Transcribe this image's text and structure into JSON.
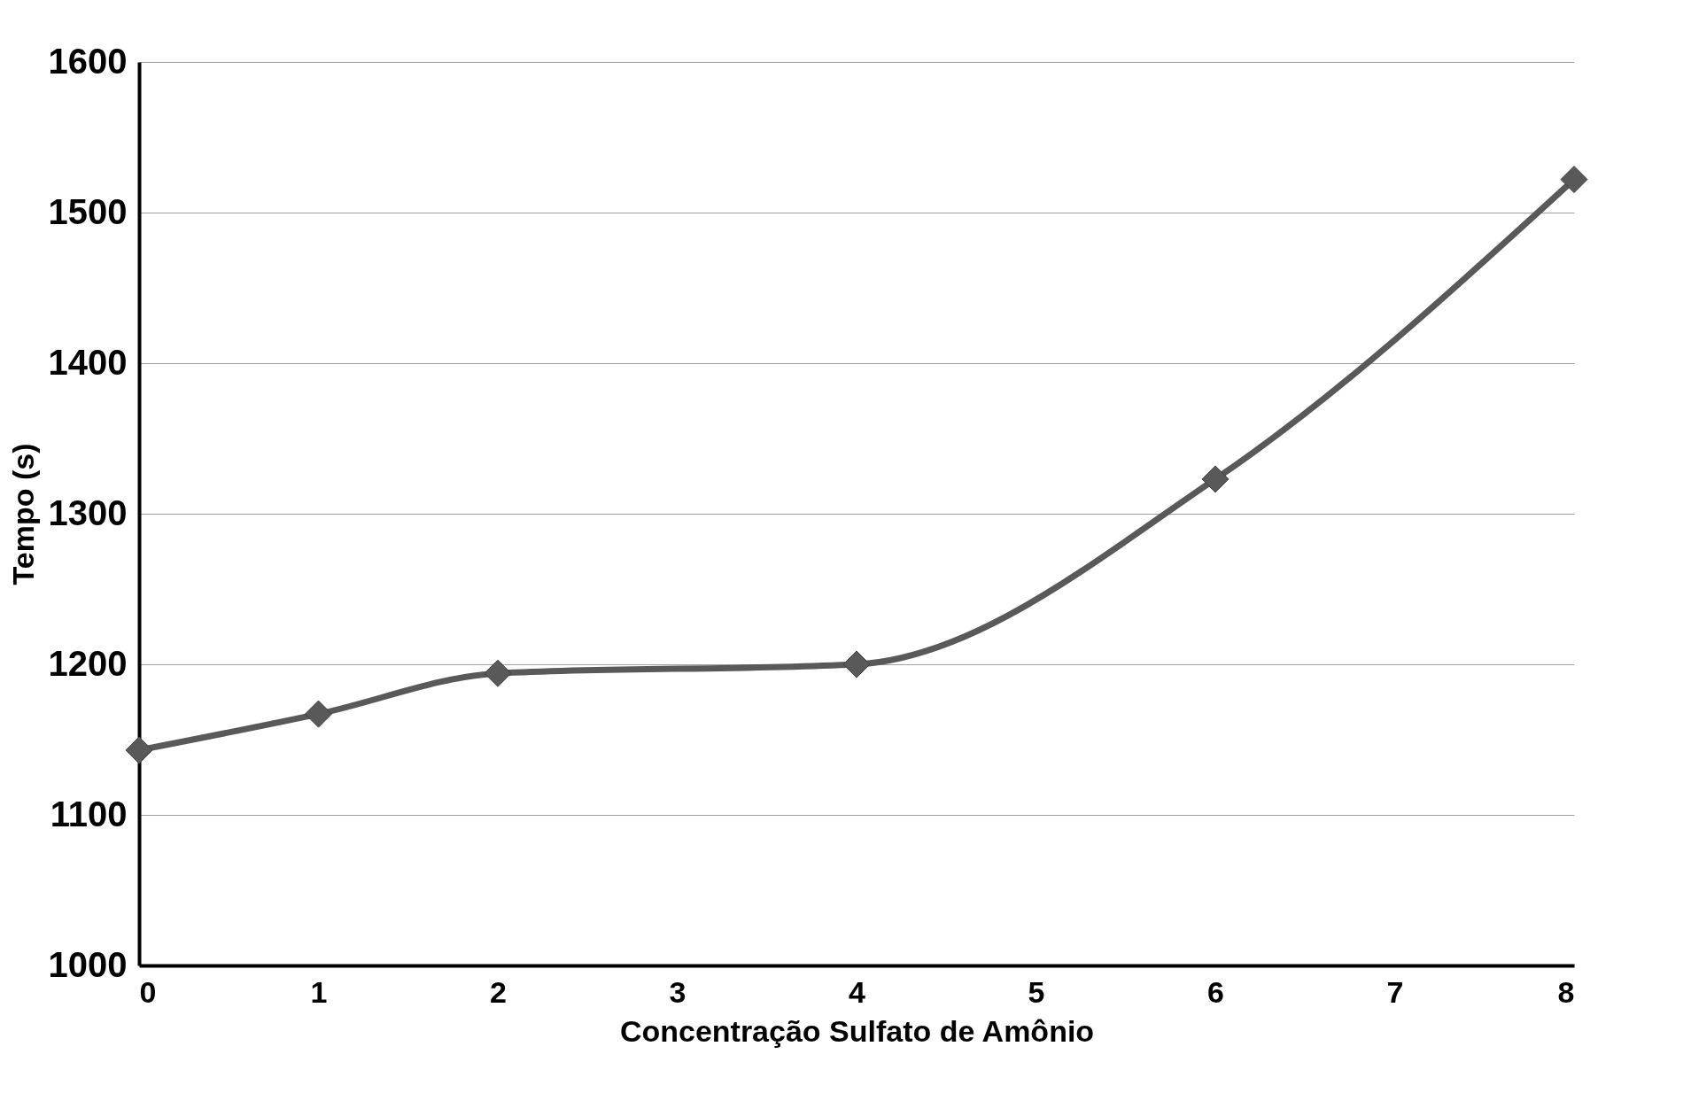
{
  "chart_data": {
    "type": "line",
    "xlabel": "Concentração Sulfato de Amônio",
    "ylabel": "Tempo (s)",
    "x": [
      0,
      1,
      2,
      4,
      6,
      8
    ],
    "series": [
      {
        "color": "#595959",
        "values": [
          1143,
          1167,
          1194,
          1200,
          1323,
          1522
        ]
      }
    ],
    "xlim": [
      0,
      8
    ],
    "xticks": [
      0,
      1,
      2,
      3,
      4,
      5,
      6,
      7,
      8
    ],
    "ylim": [
      1000,
      1600
    ],
    "yticks": [
      1000,
      1100,
      1200,
      1300,
      1400,
      1500,
      1600
    ],
    "grid": "y",
    "marker": "diamond",
    "line_style": "solid"
  }
}
